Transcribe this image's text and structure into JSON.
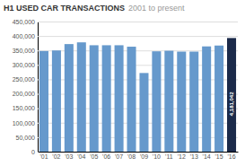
{
  "chart_data": {
    "type": "bar",
    "title": "H1 USED CAR TRANSACTIONS",
    "subtitle": "2001 to present",
    "categories": [
      "'01",
      "'02",
      "'03",
      "'04",
      "'05",
      "'06",
      "'07",
      "'08",
      "'09",
      "'10",
      "'11",
      "'12",
      "'13",
      "'14",
      "'15",
      "'16"
    ],
    "values": [
      348000,
      350000,
      372000,
      378000,
      368000,
      368000,
      368000,
      363000,
      272000,
      347000,
      349000,
      346000,
      346000,
      364000,
      367000,
      393000
    ],
    "colors": [
      "#6699cc",
      "#6699cc",
      "#6699cc",
      "#6699cc",
      "#6699cc",
      "#6699cc",
      "#6699cc",
      "#6699cc",
      "#6699cc",
      "#6699cc",
      "#6699cc",
      "#6699cc",
      "#6699cc",
      "#6699cc",
      "#6699cc",
      "#1b2a4a"
    ],
    "annotations": [
      {
        "text": "4,181,042",
        "color": "#ffffff"
      }
    ],
    "ylim": [
      0,
      450000
    ],
    "yticks": [
      0,
      {
        "value": 50000,
        "label": "50,000"
      },
      {
        "value": 100000,
        "label": "100,000"
      },
      {
        "value": 150000,
        "label": "150,000"
      },
      {
        "value": 200000,
        "label": "200,000"
      },
      {
        "value": 250000,
        "label": "250,000"
      },
      {
        "value": 300000,
        "label": "300,000"
      },
      {
        "value": 350000,
        "label": "350,000"
      },
      {
        "value": 400000,
        "label": "400,000"
      },
      {
        "value": 450000,
        "label": "450,000"
      }
    ],
    "grid": true
  }
}
